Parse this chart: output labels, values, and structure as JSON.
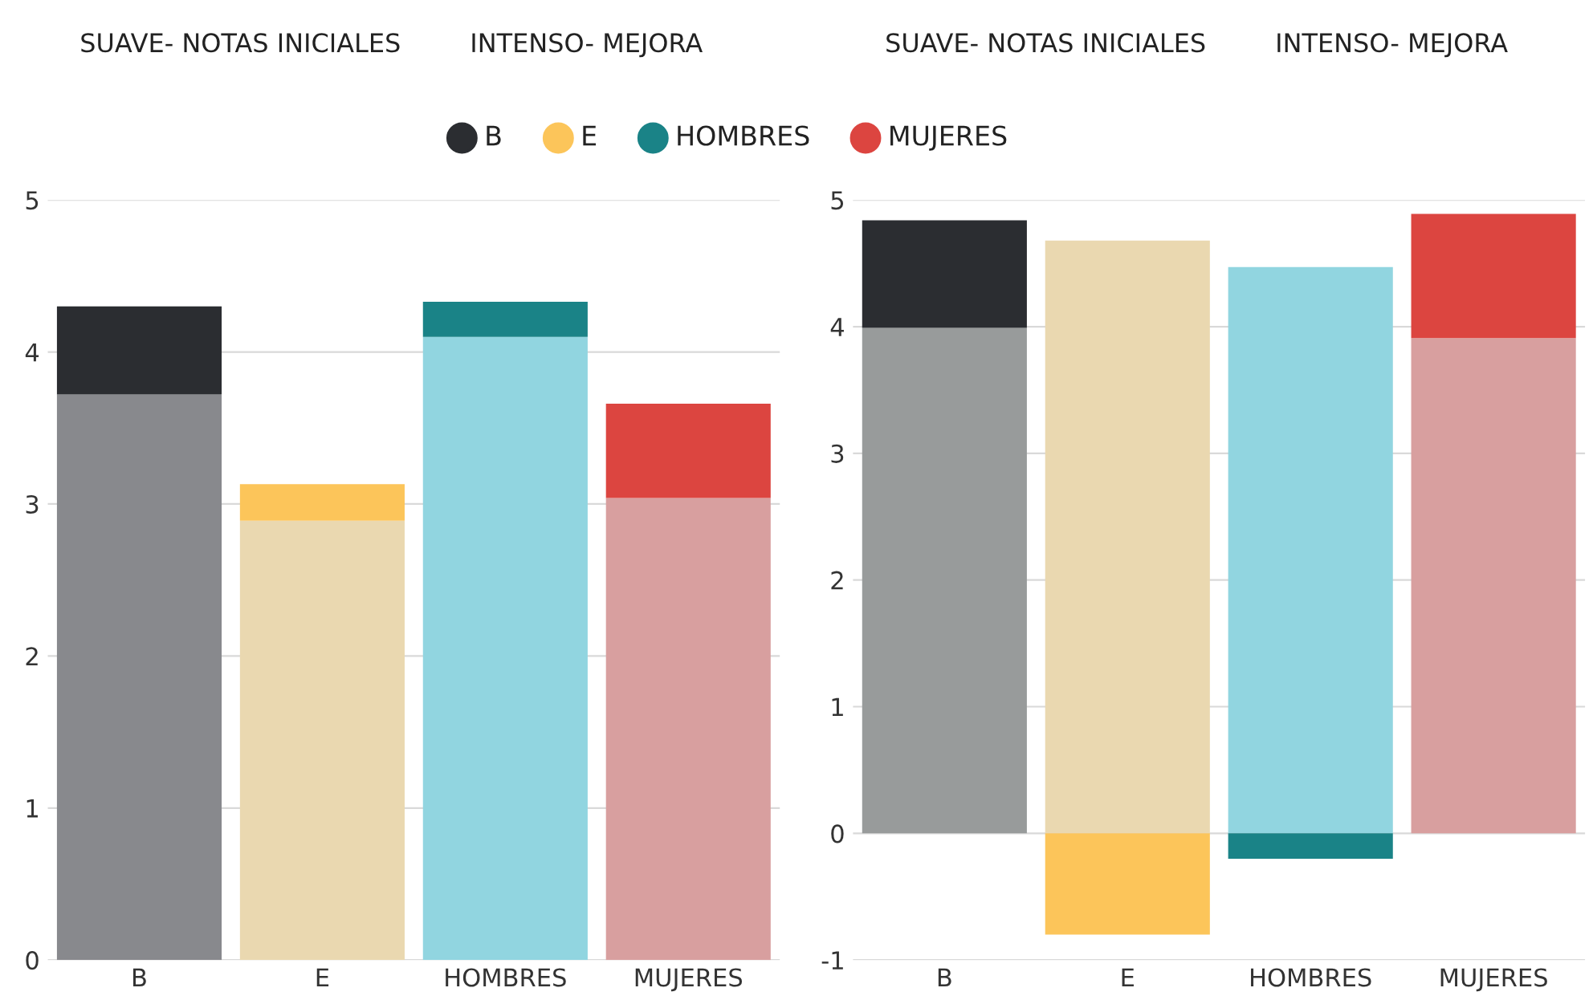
{
  "chart_data": [
    {
      "type": "bar",
      "stacked": true,
      "categories": [
        "B",
        "E",
        "HOMBRES",
        "MUJERES"
      ],
      "annotations": [
        "SUAVE- NOTAS INICIALES",
        "INTENSO- MEJORA",
        "B",
        "E",
        "HOMBRES",
        "MUJERES"
      ],
      "series": [
        {
          "colors": [
            "#88898d",
            "#ead8b0",
            "#91d5e0",
            "#d89f9f"
          ],
          "values": [
            3.72,
            2.89,
            4.1,
            3.04
          ]
        },
        {
          "colors": [
            "#2b2d31",
            "#fcc55a",
            "#1a8387",
            "#dc4540"
          ],
          "values": [
            0.58,
            0.24,
            0.23,
            0.62
          ]
        }
      ],
      "ylim": [
        0,
        5
      ],
      "yticks": [
        0,
        1,
        2,
        3,
        4,
        5
      ],
      "grid": "y"
    },
    {
      "type": "bar",
      "stacked": true,
      "categories": [
        "B",
        "E",
        "HOMBRES",
        "MUJERES"
      ],
      "annotations": [
        "SUAVE- NOTAS INICIALES",
        "INTENSO- MEJORA"
      ],
      "series": [
        {
          "colors": [
            "#989b9b",
            "#ead8b0",
            "#91d5e0",
            "#d89f9f"
          ],
          "values": [
            3.99,
            4.68,
            4.47,
            3.91
          ]
        },
        {
          "colors": [
            "#2b2d31",
            "#fcc55a",
            "#1a8387",
            "#dc4540"
          ],
          "values": [
            0.85,
            -0.8,
            -0.2,
            0.98
          ]
        }
      ],
      "ylim": [
        -1,
        5
      ],
      "yticks": [
        -1,
        0,
        1,
        2,
        3,
        4,
        5
      ],
      "grid": "y"
    }
  ]
}
